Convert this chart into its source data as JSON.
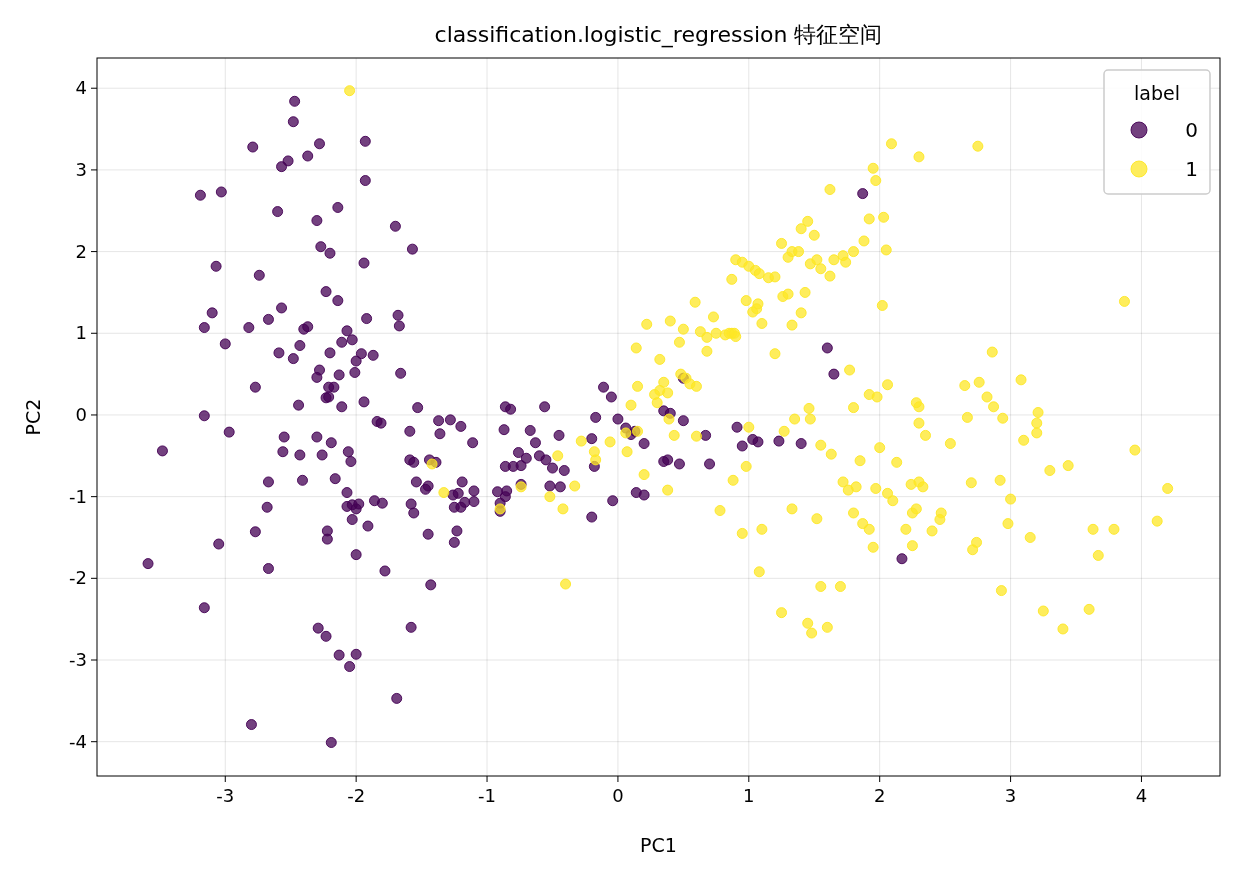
{
  "chart_data": {
    "type": "scatter",
    "title": "classification.logistic_regression 特征空间",
    "xlabel": "PC1",
    "ylabel": "PC2",
    "legend_title": "label",
    "legend": "top right",
    "grid": true,
    "marker": "circle",
    "xlim": [
      -3.98,
      4.6
    ],
    "ylim": [
      -4.42,
      4.37
    ],
    "xticks": [
      -3,
      -2,
      -1,
      0,
      1,
      2,
      3,
      4
    ],
    "yticks": [
      -4,
      -3,
      -2,
      -1,
      0,
      1,
      2,
      3,
      4
    ],
    "series": [
      {
        "name": "0",
        "color": "#440154",
        "x": [
          -2.47,
          -2.48,
          -2.57,
          -2.52,
          -2.37,
          -2.28,
          -1.93,
          -1.93,
          -2.79,
          -3.19,
          -3.03,
          -2.6,
          -2.3,
          -2.14,
          -2.27,
          -2.2,
          -1.7,
          -1.57,
          -1.94,
          -3.07,
          -2.74,
          -2.23,
          -2.14,
          -3.1,
          -2.57,
          -2.67,
          -3.16,
          -2.82,
          -2.4,
          -2.37,
          -2.07,
          -2.03,
          -1.68,
          -1.67,
          -1.92,
          -2.11,
          -3.0,
          -2.59,
          -2.43,
          -2.2,
          -1.96,
          -2.48,
          -1.87,
          -2.0,
          -2.77,
          -2.28,
          -2.21,
          -2.3,
          -2.17,
          -2.01,
          -1.66,
          -2.13,
          -2.23,
          -2.21,
          -2.44,
          -2.11,
          -1.94,
          -3.16,
          -2.97,
          -2.55,
          -2.3,
          -2.19,
          -2.06,
          -2.04,
          -1.84,
          -1.81,
          -1.53,
          -1.59,
          -1.37,
          -1.28,
          -1.36,
          -1.11,
          -1.2,
          -3.48,
          -2.56,
          -2.43,
          -2.26,
          -2.67,
          -2.41,
          -2.16,
          -2.07,
          -2.03,
          -2.0,
          -1.98,
          -2.07,
          -2.03,
          -1.91,
          -1.8,
          -1.86,
          -1.59,
          -1.56,
          -1.54,
          -1.58,
          -1.47,
          -1.45,
          -1.44,
          -1.39,
          -1.56,
          -1.45,
          -1.43,
          -1.19,
          -1.26,
          -1.22,
          -1.2,
          -1.25,
          -1.17,
          -1.1,
          -1.1,
          -1.23,
          -1.25,
          -2.68,
          -2.67,
          -2.77,
          -2.22,
          -2.22,
          -2.0,
          -1.78,
          -3.05,
          -3.59,
          -3.16,
          -2.29,
          -2.23,
          -2.13,
          -2.0,
          -2.05,
          -1.58,
          -1.69,
          -2.8,
          -2.19,
          -0.86,
          -0.82,
          -0.56,
          -0.87,
          -0.76,
          -0.7,
          -0.86,
          -0.8,
          -0.74,
          -0.74,
          -0.85,
          -0.9,
          -0.92,
          -0.9,
          -0.86,
          -0.6,
          -0.55,
          -0.5,
          -0.45,
          -0.52,
          -0.44,
          -0.67,
          -0.63,
          -0.41,
          -0.2,
          -0.17,
          -0.11,
          -0.18,
          -0.05,
          -0.2,
          -0.04,
          0.06,
          0.1,
          0.0,
          0.2,
          0.13,
          0.14,
          0.2,
          0.35,
          0.4,
          0.38,
          0.35,
          0.5,
          0.47,
          0.5,
          0.67,
          0.7,
          0.95,
          0.91,
          1.03,
          1.07,
          1.4,
          1.65,
          1.6,
          1.87,
          2.17,
          1.23
        ],
        "values": [
          3.84,
          3.59,
          3.04,
          3.11,
          3.17,
          3.32,
          3.35,
          2.87,
          3.28,
          2.69,
          2.73,
          2.49,
          2.38,
          2.54,
          2.06,
          1.98,
          2.31,
          2.03,
          1.86,
          1.82,
          1.71,
          1.51,
          1.4,
          1.25,
          1.31,
          1.17,
          1.07,
          1.07,
          1.05,
          1.08,
          1.03,
          0.92,
          1.22,
          1.09,
          1.18,
          0.89,
          0.87,
          0.76,
          0.85,
          0.76,
          0.75,
          0.69,
          0.73,
          0.66,
          0.34,
          0.55,
          0.34,
          0.46,
          0.34,
          0.52,
          0.51,
          0.49,
          0.21,
          0.22,
          0.12,
          0.1,
          0.16,
          -0.01,
          -0.21,
          -0.27,
          -0.27,
          -0.34,
          -0.45,
          -0.57,
          -0.08,
          -0.1,
          0.09,
          -0.2,
          -0.07,
          -0.06,
          -0.23,
          -0.34,
          -0.14,
          -0.44,
          -0.45,
          -0.49,
          -0.49,
          -0.82,
          -0.8,
          -0.78,
          -0.95,
          -1.1,
          -1.15,
          -1.09,
          -1.12,
          -1.28,
          -1.36,
          -1.08,
          -1.05,
          -0.55,
          -0.58,
          -0.82,
          -1.09,
          -0.91,
          -0.87,
          -0.55,
          -0.58,
          -1.2,
          -1.46,
          -2.08,
          -0.82,
          -0.98,
          -0.96,
          -1.13,
          -1.13,
          -1.07,
          -0.93,
          -1.06,
          -1.42,
          -1.56,
          -1.13,
          -1.88,
          -1.43,
          -1.42,
          -1.52,
          -1.71,
          -1.91,
          -1.58,
          -1.82,
          -2.36,
          -2.61,
          -2.71,
          -2.94,
          -2.93,
          -3.08,
          -2.6,
          -3.47,
          -3.79,
          -4.01,
          0.1,
          0.07,
          0.1,
          -0.18,
          -0.46,
          -0.53,
          -0.63,
          -0.63,
          -0.62,
          -0.85,
          -0.93,
          -1.08,
          -0.94,
          -1.18,
          -1.0,
          -0.5,
          -0.55,
          -0.65,
          -0.25,
          -0.87,
          -0.88,
          -0.19,
          -0.34,
          -0.68,
          -0.29,
          -0.03,
          0.34,
          -0.63,
          0.22,
          -1.25,
          -1.05,
          -0.16,
          -0.24,
          -0.05,
          -0.35,
          -0.2,
          -0.95,
          -0.98,
          0.05,
          0.02,
          -0.55,
          -0.57,
          0.45,
          -0.6,
          -0.07,
          -0.25,
          -0.6,
          -0.38,
          -0.15,
          -0.3,
          -0.33,
          -0.35,
          0.5,
          0.82,
          2.71,
          -1.76,
          -0.32
        ]
      },
      {
        "name": "1",
        "color": "#fde725",
        "x": [
          -2.05,
          -1.33,
          -0.9,
          -0.74,
          -1.42,
          -0.4,
          -0.52,
          -0.46,
          -0.42,
          -0.28,
          -0.33,
          -0.18,
          -0.17,
          -0.06,
          0.1,
          0.06,
          0.07,
          0.2,
          0.15,
          0.15,
          0.14,
          0.22,
          0.28,
          0.3,
          0.32,
          0.35,
          0.38,
          0.39,
          0.32,
          0.43,
          0.38,
          0.48,
          0.52,
          0.55,
          0.6,
          0.6,
          0.47,
          0.5,
          0.63,
          0.68,
          0.68,
          0.75,
          0.82,
          0.87,
          0.9,
          0.85,
          0.73,
          0.4,
          0.59,
          0.87,
          0.9,
          0.95,
          0.98,
          1.0,
          1.05,
          1.08,
          1.03,
          1.06,
          1.07,
          1.1,
          1.15,
          1.2,
          1.25,
          1.3,
          1.33,
          1.38,
          1.4,
          1.45,
          1.5,
          1.47,
          1.52,
          1.55,
          1.62,
          1.65,
          1.72,
          1.74,
          1.8,
          1.88,
          1.92,
          1.95,
          1.97,
          2.03,
          2.05,
          2.09,
          2.3,
          2.75,
          1.62,
          2.02,
          3.87,
          1.26,
          1.3,
          1.4,
          1.43,
          1.33,
          1.2,
          0.89,
          1.46,
          1.77,
          1.8,
          1.92,
          1.98,
          2.06,
          2.0,
          2.13,
          2.06,
          2.1,
          2.2,
          2.3,
          2.3,
          2.28,
          2.35,
          2.24,
          2.3,
          2.33,
          2.25,
          2.28,
          2.25,
          2.4,
          2.47,
          2.46,
          2.54,
          2.65,
          2.67,
          2.76,
          2.82,
          2.86,
          2.87,
          2.94,
          2.98,
          3.0,
          3.08,
          3.1,
          3.2,
          3.2,
          3.21,
          3.3,
          3.44,
          3.15,
          3.25,
          3.4,
          3.6,
          3.63,
          3.67,
          3.79,
          3.95,
          4.12,
          4.2,
          2.7,
          2.71,
          2.74,
          2.92,
          2.93,
          1.35,
          1.47,
          1.55,
          1.63,
          1.52,
          1.55,
          1.7,
          1.48,
          1.45,
          1.6,
          1.25,
          1.33,
          1.72,
          1.76,
          1.82,
          1.85,
          1.87,
          1.92,
          1.97,
          1.95,
          1.8,
          1.1,
          1.08,
          0.95,
          0.78,
          0.88,
          0.98,
          1.0,
          1.27
        ],
        "values": [
          3.97,
          -0.95,
          -1.15,
          -0.88,
          -0.6,
          -2.07,
          -1.0,
          -0.5,
          -1.15,
          -0.32,
          -0.87,
          -0.45,
          -0.55,
          -0.33,
          0.12,
          -0.22,
          -0.45,
          -0.73,
          -0.2,
          0.35,
          0.82,
          1.11,
          0.25,
          0.15,
          0.3,
          0.4,
          0.27,
          -0.05,
          0.68,
          -0.25,
          -0.92,
          0.5,
          0.45,
          0.38,
          0.35,
          -0.26,
          0.89,
          1.05,
          1.02,
          0.95,
          0.78,
          1.0,
          0.98,
          1.0,
          0.96,
          1.0,
          1.2,
          1.15,
          1.38,
          1.66,
          1.9,
          1.87,
          1.4,
          1.82,
          1.77,
          1.73,
          1.26,
          1.3,
          1.36,
          1.12,
          1.68,
          1.69,
          2.1,
          1.93,
          2.0,
          2.0,
          2.28,
          2.37,
          2.2,
          1.85,
          1.9,
          1.79,
          1.7,
          1.9,
          1.95,
          1.87,
          2.0,
          2.13,
          2.4,
          3.02,
          2.87,
          2.42,
          2.02,
          3.32,
          3.16,
          3.29,
          2.76,
          1.34,
          1.39,
          1.45,
          1.48,
          1.25,
          1.5,
          1.1,
          0.75,
          1.0,
          0.08,
          0.55,
          0.09,
          0.25,
          0.22,
          0.37,
          -0.4,
          -0.58,
          -0.96,
          -1.05,
          -1.4,
          -0.1,
          0.1,
          0.15,
          -0.25,
          -0.85,
          -0.82,
          -0.88,
          -1.2,
          -1.15,
          -1.6,
          -1.42,
          -1.2,
          -1.28,
          -0.35,
          0.36,
          -0.03,
          0.4,
          0.22,
          0.77,
          0.1,
          -0.04,
          -1.33,
          -1.03,
          0.43,
          -0.31,
          -0.1,
          -0.22,
          0.03,
          -0.68,
          -0.62,
          -1.5,
          -2.4,
          -2.62,
          -2.38,
          -1.4,
          -1.72,
          -1.4,
          -0.43,
          -1.3,
          -0.9,
          -0.83,
          -1.65,
          -1.56,
          -0.8,
          -2.15,
          -0.05,
          -0.05,
          -0.37,
          -0.48,
          -1.27,
          -2.1,
          -2.1,
          -2.67,
          -2.55,
          -2.6,
          -2.42,
          -1.15,
          -0.82,
          -0.92,
          -0.88,
          -0.56,
          -1.33,
          -1.4,
          -0.9,
          -1.62,
          -1.2,
          -1.4,
          -1.92,
          -1.45,
          -1.17,
          -0.8,
          -0.63,
          -0.15,
          -0.2
        ]
      }
    ]
  }
}
